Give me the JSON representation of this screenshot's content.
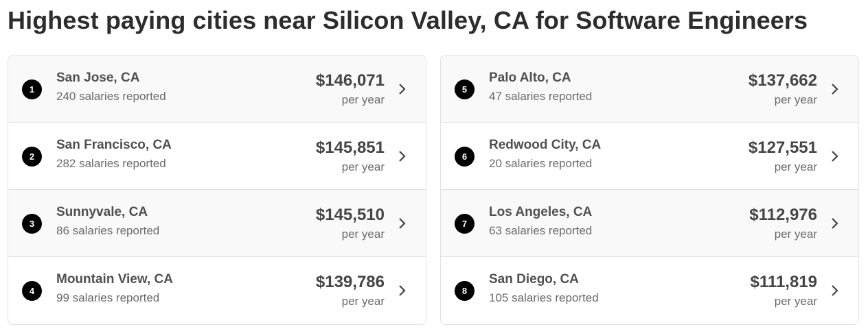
{
  "header": {
    "title": "Highest paying cities near Silicon Valley, CA for Software Engineers"
  },
  "cities": [
    {
      "rank": "1",
      "name": "San Jose, CA",
      "reports": "240 salaries reported",
      "salary": "$146,071",
      "period": "per year"
    },
    {
      "rank": "2",
      "name": "San Francisco, CA",
      "reports": "282 salaries reported",
      "salary": "$145,851",
      "period": "per year"
    },
    {
      "rank": "3",
      "name": "Sunnyvale, CA",
      "reports": "86 salaries reported",
      "salary": "$145,510",
      "period": "per year"
    },
    {
      "rank": "4",
      "name": "Mountain View, CA",
      "reports": "99 salaries reported",
      "salary": "$139,786",
      "period": "per year"
    },
    {
      "rank": "5",
      "name": "Palo Alto, CA",
      "reports": "47 salaries reported",
      "salary": "$137,662",
      "period": "per year"
    },
    {
      "rank": "6",
      "name": "Redwood City, CA",
      "reports": "20 salaries reported",
      "salary": "$127,551",
      "period": "per year"
    },
    {
      "rank": "7",
      "name": "Los Angeles, CA",
      "reports": "63 salaries reported",
      "salary": "$112,976",
      "period": "per year"
    },
    {
      "rank": "8",
      "name": "San Diego, CA",
      "reports": "105 salaries reported",
      "salary": "$111,819",
      "period": "per year"
    }
  ]
}
